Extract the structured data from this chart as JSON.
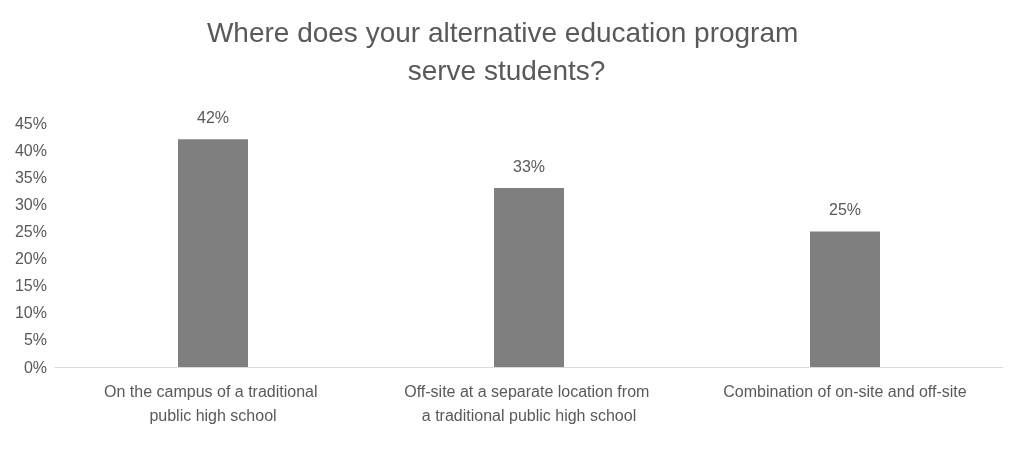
{
  "chart_data": {
    "type": "bar",
    "title": "Where does your alternative education program serve students?",
    "categories": [
      "On the campus of a traditional public high school",
      "Off-site at a separate location from a traditional public high school",
      "Combination of on-site and off-site"
    ],
    "values": [
      42,
      33,
      25
    ],
    "color": "#7f7f7f",
    "value_labels": [
      "42%",
      "33%",
      "25%"
    ],
    "ylim": [
      0,
      45
    ],
    "yticks": [
      {
        "value": 0,
        "label": "0%"
      },
      {
        "value": 5,
        "label": "5%"
      },
      {
        "value": 10,
        "label": "10%"
      },
      {
        "value": 15,
        "label": "15%"
      },
      {
        "value": 20,
        "label": "20%"
      },
      {
        "value": 25,
        "label": "25%"
      },
      {
        "value": 30,
        "label": "30%"
      },
      {
        "value": 35,
        "label": "35%"
      },
      {
        "value": 40,
        "label": "40%"
      },
      {
        "value": 45,
        "label": "45%"
      }
    ],
    "grid": false
  }
}
